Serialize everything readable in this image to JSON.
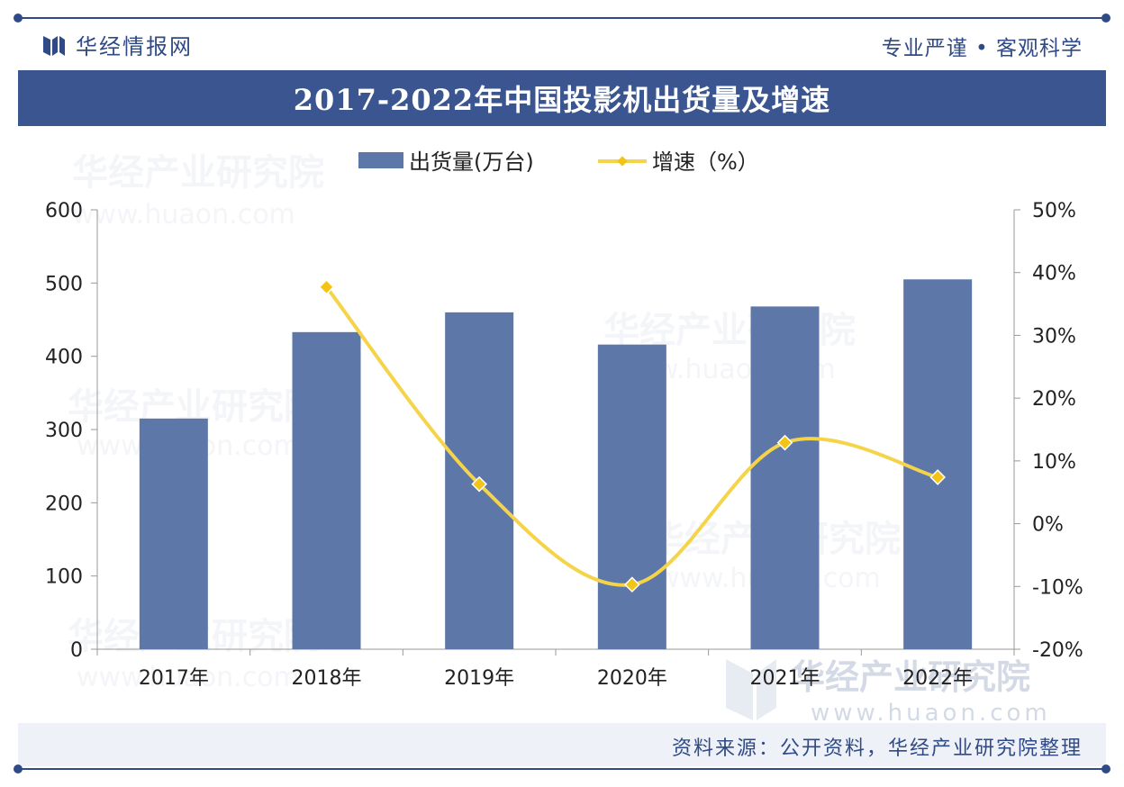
{
  "brand": {
    "name": "华经情报网",
    "motto": "专业严谨 • 客观科学",
    "watermark_name": "华经产业研究院",
    "watermark_url": "www.huaon.com"
  },
  "colors": {
    "frame": "#2f4a86",
    "title_bar": "#3a5590",
    "bar": "#5d77a8",
    "line": "#f5d44a",
    "marker": "#f2c417"
  },
  "chart_data": {
    "type": "bar",
    "title": "2017-2022年中国投影机出货量及增速",
    "categories": [
      "2017年",
      "2018年",
      "2019年",
      "2020年",
      "2021年",
      "2022年"
    ],
    "series": [
      {
        "name": "出货量(万台)",
        "type": "bar",
        "axis": "left",
        "values": [
          315,
          433,
          460,
          416,
          468,
          505
        ]
      },
      {
        "name": "增速（%）",
        "type": "line",
        "axis": "right",
        "values": [
          null,
          37.7,
          6.3,
          -9.7,
          12.9,
          7.4
        ]
      }
    ],
    "y_left": {
      "min": 0,
      "max": 600,
      "step": 100,
      "ticks": [
        "0",
        "100",
        "200",
        "300",
        "400",
        "500",
        "600"
      ]
    },
    "y_right": {
      "min": -20,
      "max": 50,
      "step": 10,
      "ticks": [
        "-20%",
        "-10%",
        "0%",
        "10%",
        "20%",
        "30%",
        "40%",
        "50%"
      ]
    },
    "legend_position": "top-center",
    "grid": false
  },
  "source": "资料来源：公开资料，华经产业研究院整理"
}
